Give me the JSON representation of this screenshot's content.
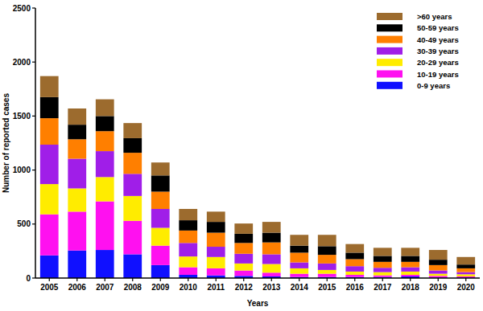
{
  "chart_data": {
    "type": "bar",
    "stacked": true,
    "legend": "top-right",
    "grid": false,
    "x_label": "Years",
    "y_label": "Number of reported cases",
    "categories": [
      "2005",
      "2006",
      "2007",
      "2008",
      "2009",
      "2010",
      "2011",
      "2012",
      "2013",
      "2014",
      "2015",
      "2016",
      "2017",
      "2018",
      "2019",
      "2020"
    ],
    "ylim": [
      0,
      2500
    ],
    "yticks": [
      0,
      500,
      1000,
      1500,
      2000,
      2500
    ],
    "series": [
      {
        "name": "0-9 years",
        "color": "#1010ff",
        "values": [
          210,
          255,
          260,
          220,
          120,
          30,
          25,
          20,
          15,
          10,
          10,
          10,
          10,
          15,
          5,
          5
        ]
      },
      {
        "name": "10-19 years",
        "color": "#ff10f0",
        "values": [
          380,
          360,
          450,
          310,
          180,
          70,
          65,
          50,
          35,
          30,
          30,
          20,
          15,
          15,
          15,
          10
        ]
      },
      {
        "name": "20-29 years",
        "color": "#ffec00",
        "values": [
          280,
          215,
          225,
          230,
          165,
          100,
          105,
          65,
          80,
          50,
          35,
          30,
          30,
          30,
          20,
          20
        ]
      },
      {
        "name": "30-39 years",
        "color": "#a01ee8",
        "values": [
          365,
          275,
          240,
          205,
          175,
          125,
          95,
          90,
          90,
          55,
          60,
          50,
          40,
          40,
          30,
          20
        ]
      },
      {
        "name": "40-49 years",
        "color": "#ff7f00",
        "values": [
          245,
          180,
          185,
          195,
          160,
          115,
          130,
          100,
          110,
          90,
          80,
          65,
          55,
          50,
          50,
          35
        ]
      },
      {
        "name": "50-59 years",
        "color": "#000000",
        "values": [
          195,
          135,
          140,
          135,
          150,
          95,
          100,
          85,
          90,
          65,
          80,
          60,
          55,
          55,
          50,
          35
        ]
      },
      {
        "name": ">60 years",
        "color": "#9c6b2e",
        "values": [
          195,
          150,
          155,
          140,
          120,
          105,
          95,
          95,
          100,
          100,
          105,
          80,
          75,
          75,
          90,
          70
        ]
      }
    ]
  }
}
